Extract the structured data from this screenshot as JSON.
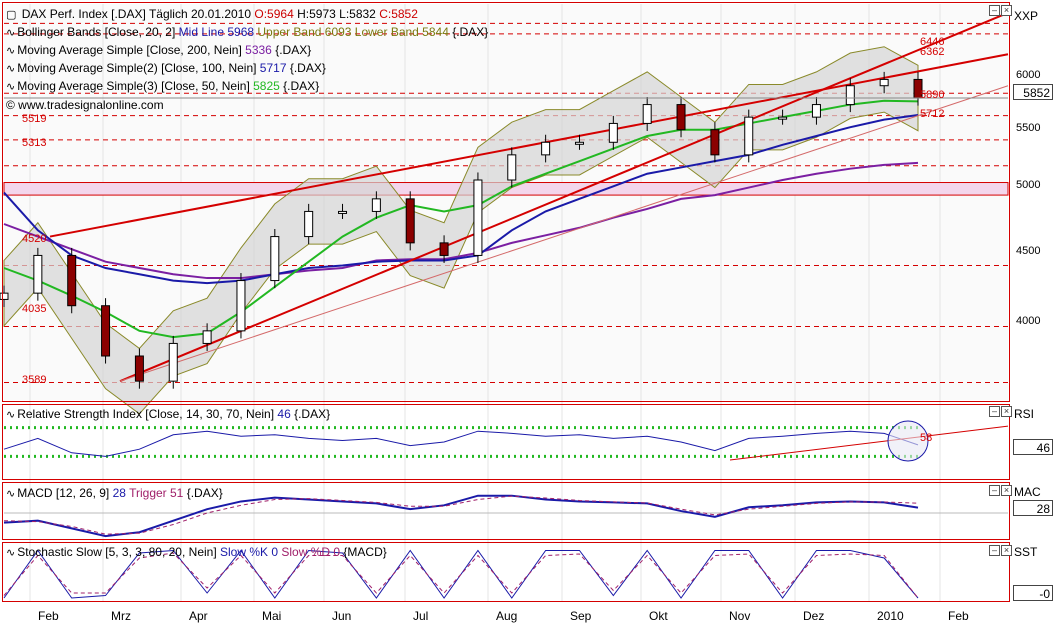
{
  "header": {
    "title": "DAX Perf. Index [.DAX]",
    "interval": "Täglich",
    "date": "20.01.2010",
    "open": "O:5964",
    "high": "H:5973",
    "low": "L:5832",
    "close": "C:5852"
  },
  "legend": {
    "bollinger": {
      "label": "Bollinger Bands [Close, 20, 2]",
      "mid": "Mid Line 5968",
      "bands": "Upper Band 6093 Lower Band 5844",
      "sym": "{.DAX}"
    },
    "ma200": {
      "label": "Moving Average Simple [Close, 200, Nein]",
      "value": "5336",
      "sym": "{.DAX}"
    },
    "ma100": {
      "label": "Moving Average Simple(2) [Close, 100, Nein]",
      "value": "5717",
      "sym": "{.DAX}"
    },
    "ma50": {
      "label": "Moving Average Simple(3) [Close, 50, Nein]",
      "value": "5825",
      "sym": "{.DAX}"
    },
    "website": "© www.tradesignalonline.com"
  },
  "axis_tags": {
    "price": "XXP",
    "rsi": "RSI",
    "macd": "MAC",
    "stoch": "SST"
  },
  "price_axis": {
    "ticks": [
      "6000",
      "5500",
      "5000",
      "4500",
      "4000"
    ],
    "current": "5852"
  },
  "levels": {
    "l6446": "6446",
    "l6362": "6362",
    "l5890": "5890",
    "l5712": "5712",
    "l5519": "5519",
    "l5313": "5313",
    "l4520": "4520",
    "l4035": "4035",
    "l3589": "3589"
  },
  "rsi": {
    "label": "Relative Strength Index [Close, 14, 30, 70, Nein]",
    "value": "46",
    "sym": "{.DAX}",
    "annotation": "58",
    "current": "46"
  },
  "macd": {
    "label": "MACD [12, 26, 9]",
    "value": "28",
    "trigger": "Trigger 51",
    "sym": "{.DAX}",
    "current": "28"
  },
  "stoch": {
    "label": "Stochastic Slow [5, 3, 3, 80, 20, Nein]",
    "k": "Slow %K 0",
    "d": "Slow %D 0",
    "sym": "{MACD}",
    "current": "-0"
  },
  "x_axis": [
    "Feb",
    "Mrz",
    "Apr",
    "Mai",
    "Jun",
    "Jul",
    "Aug",
    "Sep",
    "Okt",
    "Nov",
    "Dez",
    "2010",
    "Feb"
  ],
  "colors": {
    "frame": "#d40000",
    "ma200": "#7b1fa2",
    "ma100": "#1a1aa8",
    "ma50": "#22b822",
    "band": "#8a8a2a",
    "bandfill": "#d4d4d4",
    "up": "#ffffff",
    "down": "#8b0000",
    "rsi": "#1a1aa8",
    "dotted": "#22b822",
    "macd": "#1a1aa8",
    "trigger": "#a0206a"
  },
  "chart_data": [
    {
      "type": "candlestick",
      "title": "DAX Perf. Index [.DAX]",
      "ylim": [
        3450,
        6600
      ],
      "x": [
        "2009-01-15",
        "2009-02-01",
        "2009-02-15",
        "2009-03-01",
        "2009-03-06",
        "2009-03-20",
        "2009-04-01",
        "2009-04-15",
        "2009-05-01",
        "2009-05-15",
        "2009-06-01",
        "2009-06-15",
        "2009-07-01",
        "2009-07-13",
        "2009-07-25",
        "2009-08-10",
        "2009-08-25",
        "2009-09-10",
        "2009-09-25",
        "2009-10-10",
        "2009-10-20",
        "2009-11-02",
        "2009-11-15",
        "2009-12-01",
        "2009-12-15",
        "2010-01-01",
        "2010-01-10",
        "2010-01-20"
      ],
      "close": [
        4300,
        4600,
        4200,
        3800,
        3600,
        3900,
        4000,
        4400,
        4750,
        4950,
        4950,
        5050,
        4700,
        4600,
        5200,
        5400,
        5500,
        5500,
        5650,
        5800,
        5600,
        5400,
        5700,
        5700,
        5800,
        5950,
        6000,
        5852
      ],
      "series": [
        {
          "name": "Moving Average Simple [Close, 200, Nein]",
          "values": [
            4850,
            4750,
            4650,
            4550,
            4500,
            4450,
            4420,
            4420,
            4450,
            4480,
            4500,
            4560,
            4570,
            4570,
            4620,
            4700,
            4760,
            4820,
            4900,
            4970,
            5050,
            5080,
            5140,
            5200,
            5250,
            5290,
            5320,
            5336
          ]
        },
        {
          "name": "Moving Average Simple(2) [Close, 100, Nein]",
          "values": [
            5100,
            4800,
            4600,
            4500,
            4450,
            4400,
            4380,
            4400,
            4450,
            4500,
            4520,
            4550,
            4560,
            4560,
            4600,
            4800,
            4950,
            5050,
            5150,
            5250,
            5300,
            5350,
            5400,
            5480,
            5550,
            5620,
            5680,
            5717
          ]
        },
        {
          "name": "Moving Average Simple(3) [Close, 50, Nein]",
          "values": [
            4500,
            4400,
            4280,
            4150,
            4000,
            3950,
            3980,
            4150,
            4350,
            4550,
            4750,
            4900,
            5000,
            4950,
            5000,
            5150,
            5250,
            5350,
            5450,
            5550,
            5600,
            5600,
            5650,
            5700,
            5750,
            5800,
            5830,
            5825
          ]
        }
      ],
      "bollinger": {
        "upper": 6093,
        "mid": 5968,
        "lower": 5844
      },
      "annotations": [
        "6446",
        "6362",
        "5890",
        "5712",
        "5519",
        "5313",
        "4520",
        "4035",
        "3589"
      ]
    },
    {
      "type": "line",
      "title": "Relative Strength Index [Close, 14, 30, 70, Nein]",
      "ylim": [
        0,
        100
      ],
      "levels": [
        30,
        70
      ],
      "series": [
        {
          "name": "RSI",
          "values": [
            40,
            55,
            35,
            30,
            40,
            60,
            65,
            58,
            60,
            55,
            52,
            55,
            45,
            50,
            65,
            62,
            58,
            60,
            55,
            58,
            50,
            38,
            55,
            58,
            62,
            65,
            62,
            46
          ]
        }
      ]
    },
    {
      "type": "line",
      "title": "MACD [12, 26, 9]",
      "series": [
        {
          "name": "MACD",
          "values": [
            -50,
            -40,
            -80,
            -120,
            -100,
            -40,
            20,
            60,
            80,
            70,
            60,
            50,
            20,
            40,
            90,
            90,
            70,
            60,
            55,
            50,
            10,
            -20,
            30,
            40,
            55,
            60,
            55,
            28
          ]
        },
        {
          "name": "Trigger",
          "values": [
            -40,
            -45,
            -70,
            -110,
            -105,
            -60,
            0,
            40,
            70,
            75,
            65,
            55,
            35,
            35,
            70,
            88,
            78,
            65,
            58,
            52,
            20,
            -10,
            20,
            35,
            50,
            58,
            57,
            51
          ]
        }
      ]
    },
    {
      "type": "line",
      "title": "Stochastic Slow [5, 3, 3, 80, 20, Nein]",
      "ylim": [
        0,
        100
      ],
      "series": [
        {
          "name": "Slow %K",
          "values": [
            0,
            95,
            0,
            5,
            90,
            95,
            10,
            95,
            0,
            95,
            90,
            0,
            95,
            0,
            95,
            0,
            95,
            95,
            5,
            95,
            0,
            95,
            95,
            0,
            95,
            95,
            80,
            0
          ]
        },
        {
          "name": "Slow %D",
          "values": [
            5,
            85,
            10,
            10,
            80,
            90,
            20,
            85,
            10,
            85,
            85,
            10,
            85,
            10,
            85,
            10,
            85,
            88,
            15,
            85,
            10,
            85,
            88,
            10,
            85,
            88,
            85,
            0
          ]
        }
      ]
    }
  ]
}
